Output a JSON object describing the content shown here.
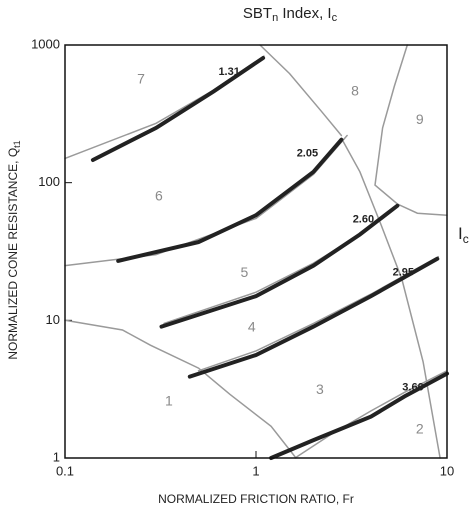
{
  "chart_data": {
    "type": "line",
    "title_parts": [
      "SBT",
      "n",
      " Index, I",
      "c"
    ],
    "x_label": "NORMALIZED FRICTION RATIO, Fr",
    "y_label_parts": [
      "NORMALIZED CONE RESISTANCE, Q",
      "t1"
    ],
    "right_label_parts": [
      "I",
      "c"
    ],
    "log_x": true,
    "log_y": true,
    "xlim": [
      0.1,
      10
    ],
    "ylim": [
      1,
      1000
    ],
    "xticks": [
      0.1,
      1,
      10
    ],
    "yticks": [
      1,
      10,
      100,
      1000
    ],
    "series": [
      {
        "name": "1.31",
        "color": "#222222",
        "x": [
          0.14,
          0.3,
          0.6,
          1.09
        ],
        "values": [
          146,
          250,
          460,
          805
        ]
      },
      {
        "name": "2.05",
        "color": "#222222",
        "x": [
          0.19,
          0.5,
          1,
          2,
          2.8
        ],
        "values": [
          27,
          37,
          58,
          120,
          205
        ]
      },
      {
        "name": "2.60",
        "color": "#222222",
        "x": [
          0.32,
          1,
          2,
          3.5,
          5.5
        ],
        "values": [
          9,
          15,
          25,
          42,
          68
        ]
      },
      {
        "name": "2.95",
        "color": "#222222",
        "x": [
          0.45,
          1,
          2,
          4,
          8.9
        ],
        "values": [
          3.9,
          5.6,
          9,
          15,
          28
        ]
      },
      {
        "name": "3.60",
        "color": "#222222",
        "x": [
          1.2,
          2,
          4,
          6,
          10
        ],
        "values": [
          1,
          1.35,
          2,
          2.8,
          4.1
        ]
      }
    ],
    "boundary_color": "#9a9a9a",
    "boundaries": [
      {
        "x": [
          0.1,
          0.2,
          0.28,
          0.5,
          0.73,
          1.2,
          1.62
        ],
        "values": [
          10,
          8.5,
          6.6,
          4.5,
          2.9,
          1.7,
          1
        ]
      },
      {
        "x": [
          0.1,
          0.3,
          0.6,
          1.1
        ],
        "values": [
          150,
          270,
          470,
          830
        ]
      },
      {
        "x": [
          0.1,
          0.3,
          1,
          2,
          3
        ],
        "values": [
          25,
          30,
          55,
          115,
          220
        ]
      },
      {
        "x": [
          1.05,
          1.5,
          2.2,
          2.8
        ],
        "values": [
          1000,
          620,
          330,
          220
        ]
      },
      {
        "x": [
          6.2,
          5.3,
          4.6,
          4.2,
          5.5,
          7,
          10
        ],
        "values": [
          1000,
          500,
          250,
          96,
          70,
          60,
          58
        ]
      },
      {
        "x": [
          2.8,
          3.5,
          4.5,
          5.8,
          7.5,
          9.2
        ],
        "values": [
          210,
          120,
          50,
          20,
          5,
          1
        ]
      },
      {
        "x": [
          0.33,
          1,
          2,
          3.5,
          5
        ],
        "values": [
          9.5,
          16,
          26,
          42,
          60
        ]
      },
      {
        "x": [
          0.5,
          1,
          2,
          4,
          9
        ],
        "values": [
          4.3,
          6,
          9.5,
          15.5,
          29
        ]
      },
      {
        "x": [
          1.6,
          2.5,
          4,
          6,
          10
        ],
        "values": [
          1,
          1.5,
          2.2,
          3,
          4.3
        ]
      }
    ],
    "zones": [
      {
        "label": "1",
        "x": 0.35,
        "y": 2.55
      },
      {
        "label": "2",
        "x": 7.2,
        "y": 1.6
      },
      {
        "label": "3",
        "x": 2.16,
        "y": 3.1
      },
      {
        "label": "4",
        "x": 0.95,
        "y": 8.8
      },
      {
        "label": "5",
        "x": 0.87,
        "y": 22
      },
      {
        "label": "6",
        "x": 0.31,
        "y": 79
      },
      {
        "label": "7",
        "x": 0.25,
        "y": 557
      },
      {
        "label": "8",
        "x": 3.3,
        "y": 456
      },
      {
        "label": "9",
        "x": 7.2,
        "y": 285
      }
    ]
  }
}
